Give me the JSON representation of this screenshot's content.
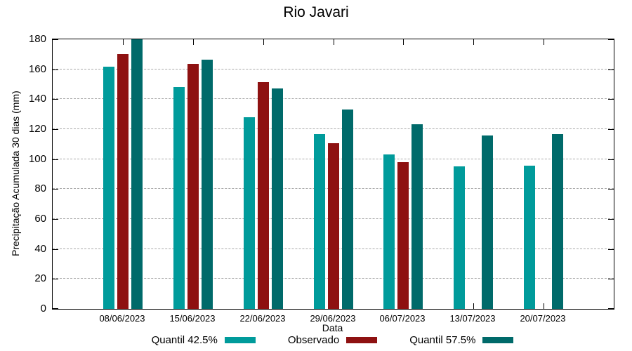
{
  "title": "Rio Javari",
  "colors": {
    "quantil_42_5": "#009B9B",
    "observado": "#8E1111",
    "quantil_57_5": "#006A6A",
    "grid": "#a9a9a9",
    "axis": "#000000"
  },
  "chart_data": {
    "type": "bar",
    "title": "Rio Javari",
    "xlabel": "Data",
    "ylabel": "Precipitação Acumulada 30 dias (mm)",
    "ylim": [
      0,
      180
    ],
    "yticks": [
      0,
      20,
      40,
      60,
      80,
      100,
      120,
      140,
      160,
      180
    ],
    "grid": true,
    "legend_position": "bottom",
    "categories": [
      "08/06/2023",
      "15/06/2023",
      "22/06/2023",
      "29/06/2023",
      "06/07/2023",
      "13/07/2023",
      "20/07/2023"
    ],
    "series": [
      {
        "name": "Quantil 42.5%",
        "color": "#009B9B",
        "values": [
          161.5,
          148,
          128,
          116.5,
          103,
          95,
          95.5
        ]
      },
      {
        "name": "Observado",
        "color": "#8E1111",
        "values": [
          170,
          163.5,
          151.5,
          110.5,
          98,
          null,
          null
        ]
      },
      {
        "name": "Quantil 57.5%",
        "color": "#006A6A",
        "values": [
          180,
          166.5,
          147,
          133,
          123.5,
          116,
          116.5
        ]
      }
    ]
  }
}
